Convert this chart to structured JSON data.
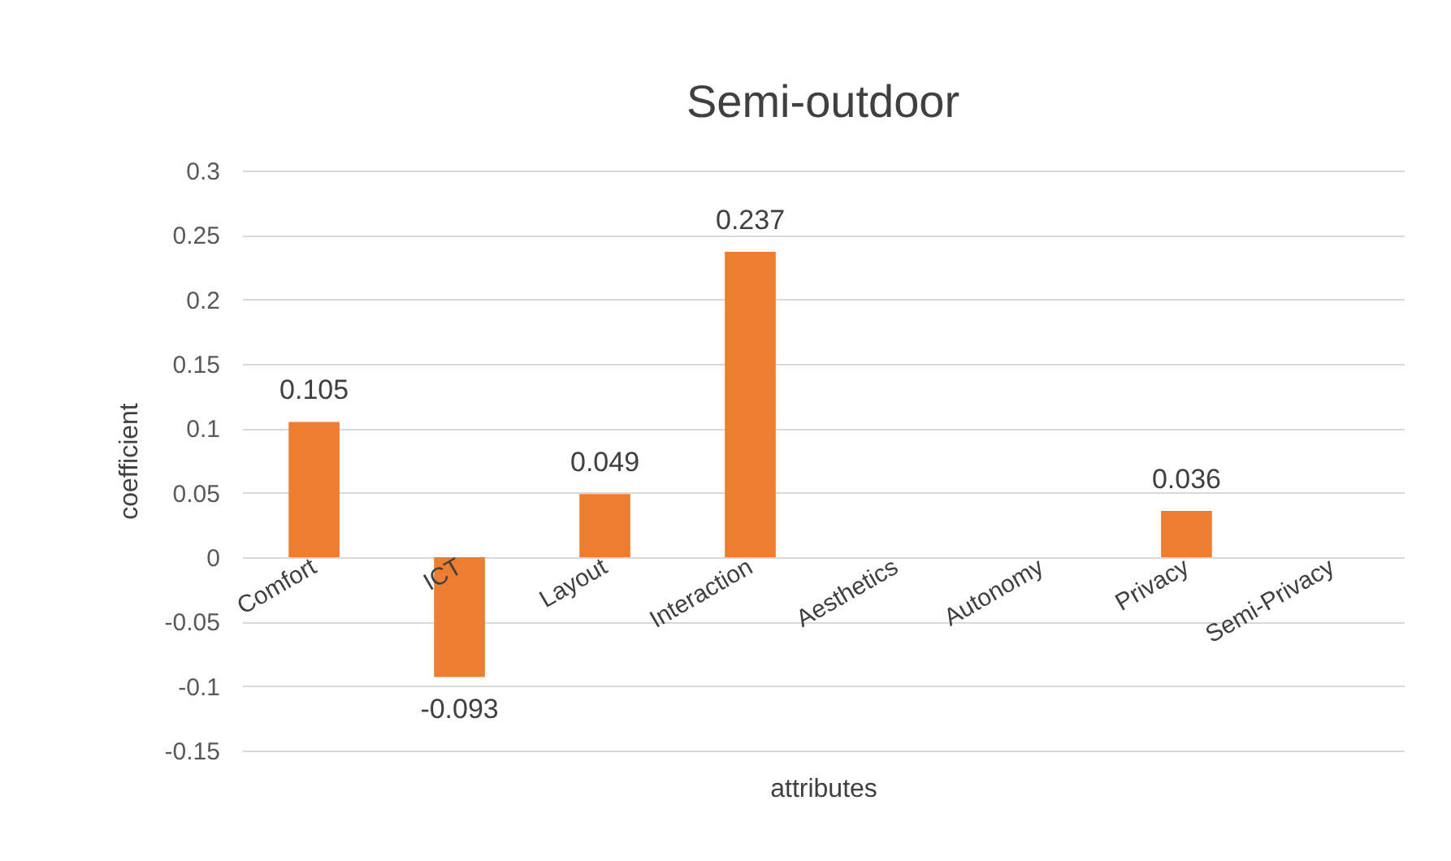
{
  "chart_data": {
    "type": "bar",
    "title": "Semi-outdoor",
    "xlabel": "attributes",
    "ylabel": "coefficient",
    "categories": [
      "Comfort",
      "ICT",
      "Layout",
      "Interaction",
      "Aesthetics",
      "Autonomy",
      "Privacy",
      "Semi-Privacy"
    ],
    "values": [
      0.105,
      -0.093,
      0.049,
      0.237,
      null,
      null,
      0.036,
      null
    ],
    "color": "#ed7d31",
    "ylim": [
      -0.15,
      0.3
    ],
    "yticks": [
      -0.15,
      -0.1,
      -0.05,
      0,
      0.05,
      0.1,
      0.15,
      0.2,
      0.25,
      0.3
    ],
    "grid": "y",
    "data_labels": true
  }
}
